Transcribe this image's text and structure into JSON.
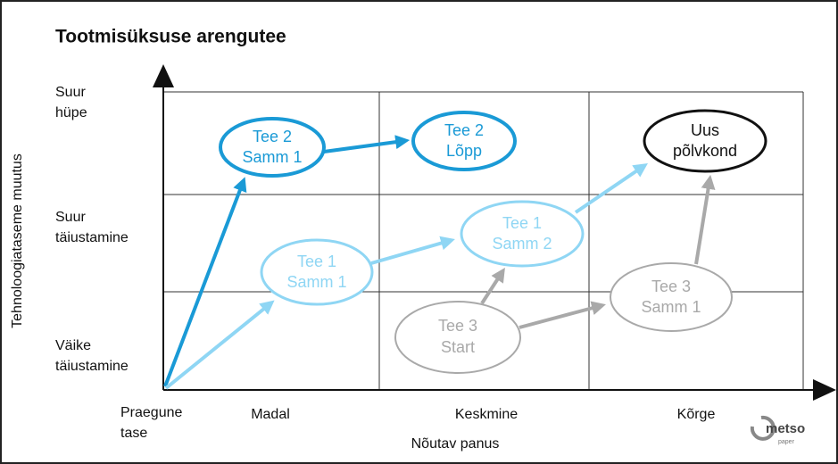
{
  "title": "Tootmisüksuse arengutee",
  "y_axis": {
    "label": "Tehnoloogiataseme muutus",
    "levels": [
      {
        "lines": [
          "Suur",
          "hüpe"
        ]
      },
      {
        "lines": [
          "Suur",
          "täiustamine"
        ]
      },
      {
        "lines": [
          "Väike",
          "täiustamine"
        ]
      }
    ]
  },
  "origin": {
    "lines": [
      "Praegune",
      "tase"
    ]
  },
  "x_axis": {
    "label": "Nõutav panus",
    "levels": [
      "Madal",
      "Keskmine",
      "Kõrge"
    ]
  },
  "nodes": [
    {
      "lines": [
        "Tee 2",
        "Samm 1"
      ]
    },
    {
      "lines": [
        "Tee 2",
        "Lõpp"
      ]
    },
    {
      "lines": [
        "Uus",
        "põlvkond"
      ]
    },
    {
      "lines": [
        "Tee 1",
        "Samm 2"
      ]
    },
    {
      "lines": [
        "Tee 1",
        "Samm 1"
      ]
    },
    {
      "lines": [
        "Tee 3",
        "Start"
      ]
    },
    {
      "lines": [
        "Tee 3",
        "Samm 1"
      ]
    }
  ],
  "logo": {
    "name": "metso",
    "sub": "paper"
  }
}
